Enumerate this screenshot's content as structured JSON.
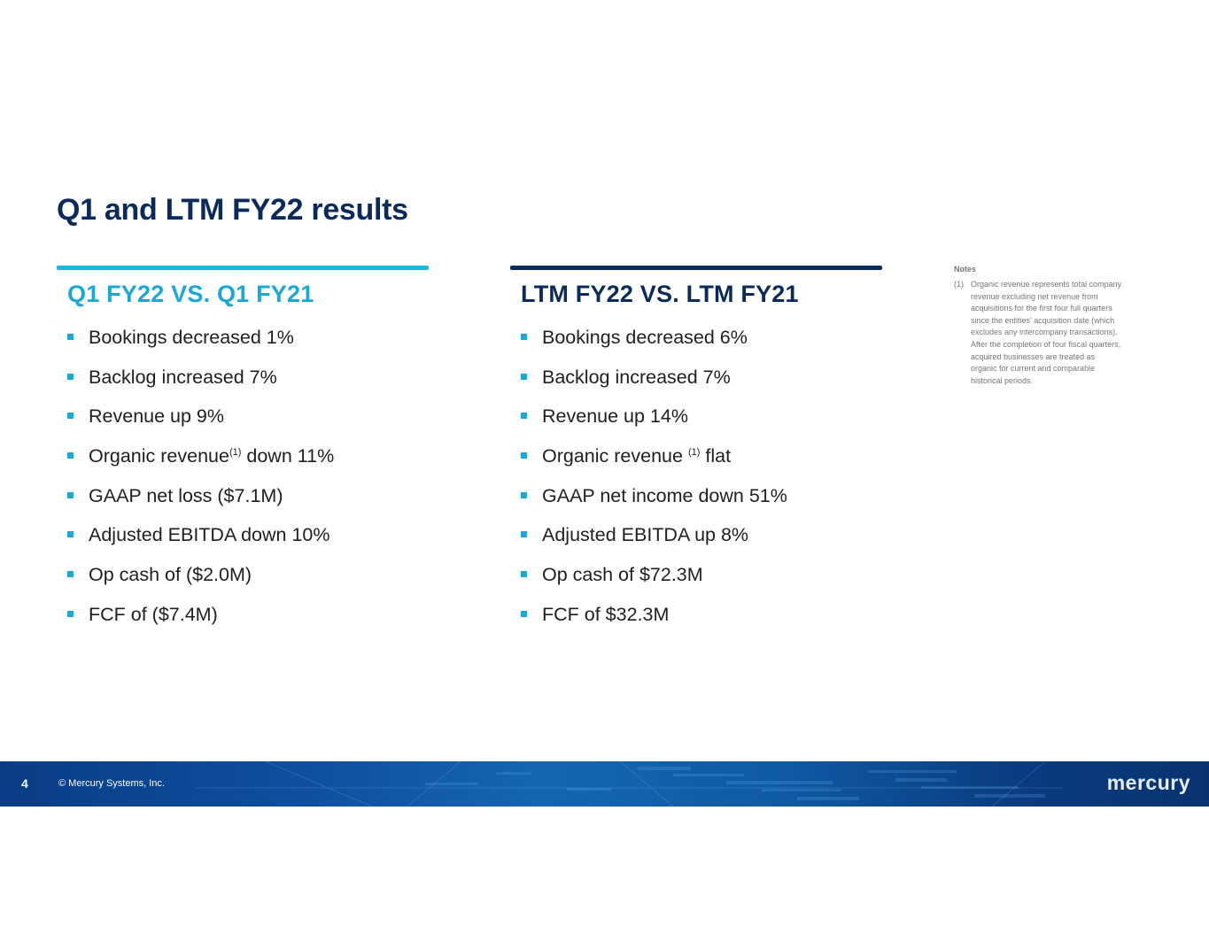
{
  "title": "Q1 and LTM FY22 results",
  "left": {
    "heading": "Q1 FY22 VS. Q1 FY21",
    "items": [
      {
        "text": "Bookings decreased 1%"
      },
      {
        "text": "Backlog increased 7%"
      },
      {
        "text": "Revenue up 9%"
      },
      {
        "pre": "Organic revenue",
        "sup": "(1)",
        "post": " down 11%"
      },
      {
        "text": "GAAP net loss ($7.1M)"
      },
      {
        "text": "Adjusted EBITDA down 10%"
      },
      {
        "text": "Op cash of ($2.0M)"
      },
      {
        "text": "FCF of ($7.4M)"
      }
    ]
  },
  "right": {
    "heading": "LTM FY22 VS. LTM FY21",
    "items": [
      {
        "text": "Bookings decreased 6%"
      },
      {
        "text": "Backlog increased 7%"
      },
      {
        "text": "Revenue up 14%"
      },
      {
        "pre": "Organic revenue ",
        "sup": "(1)",
        "post": " flat"
      },
      {
        "text": "GAAP net income down 51%"
      },
      {
        "text": "Adjusted EBITDA up 8%"
      },
      {
        "text": "Op cash of $72.3M"
      },
      {
        "text": "FCF of $32.3M"
      }
    ]
  },
  "notes": {
    "title": "Notes",
    "items": [
      {
        "num": "(1)",
        "text": "Organic revenue represents total company revenue excluding net revenue from acquisitions for the first four full quarters since the entities' acquisition date (which excludes any intercompany transactions). After the completion of four fiscal quarters, acquired businesses are treated as organic for current and comparable historical periods."
      }
    ]
  },
  "footer": {
    "page_number": "4",
    "copyright": "© Mercury Systems, Inc.",
    "logo": "mercury"
  },
  "colors": {
    "title": "#0b2a5c",
    "accent_cyan": "#1ba8d6",
    "accent_navy": "#0b2a5c",
    "footer_blue": "#0e4f9e"
  }
}
